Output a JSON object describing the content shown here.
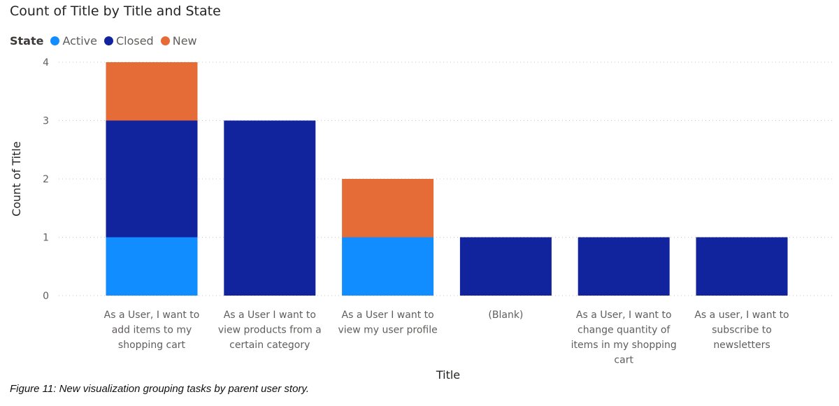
{
  "chart_data": {
    "type": "bar",
    "stacked": true,
    "title": "Count of Title by Title and State",
    "legend_title": "State",
    "legend_position": "top-left",
    "xlabel": "Title",
    "ylabel": "Count of Title",
    "ylim": [
      0,
      4
    ],
    "yticks": [
      0,
      1,
      2,
      3,
      4
    ],
    "grid": true,
    "categories": [
      [
        "As a User, I want to",
        "add items to my",
        "shopping cart"
      ],
      [
        "As a User I want to",
        "view products from a",
        "certain category"
      ],
      [
        "As a User I want to",
        "view my user profile"
      ],
      [
        "(Blank)"
      ],
      [
        "As a User, I want to",
        "change quantity of",
        "items in my shopping",
        "cart"
      ],
      [
        "As a user, I want to",
        "subscribe to",
        "newsletters"
      ]
    ],
    "series": [
      {
        "name": "Active",
        "color": "#118DFF",
        "values": [
          1,
          0,
          1,
          0,
          0,
          0
        ]
      },
      {
        "name": "Closed",
        "color": "#12239E",
        "values": [
          2,
          3,
          0,
          1,
          1,
          1
        ]
      },
      {
        "name": "New",
        "color": "#E66C37",
        "values": [
          1,
          0,
          1,
          0,
          0,
          0
        ]
      }
    ]
  },
  "caption": "Figure 11: New visualization grouping tasks by parent user story."
}
